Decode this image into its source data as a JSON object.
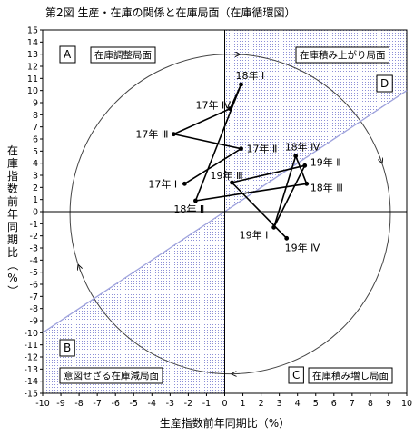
{
  "title": "第2図 生産・在庫の関係と在庫局面（在庫循環図）",
  "chart_data": {
    "type": "scatter",
    "connected": true,
    "xlabel": "生産指数前年同期比（%）",
    "ylabel": "在庫指数前年同期比（%）",
    "xlim": [
      -10,
      10
    ],
    "ylim": [
      -15,
      15
    ],
    "x_ticks": [
      -10,
      -9,
      -8,
      -7,
      -6,
      -5,
      -4,
      -3,
      -2,
      -1,
      0,
      1,
      2,
      3,
      4,
      5,
      6,
      7,
      8,
      9,
      10
    ],
    "y_ticks": [
      15,
      14,
      13,
      12,
      11,
      10,
      9,
      8,
      7,
      6,
      5,
      4,
      3,
      2,
      1,
      0,
      -1,
      -2,
      -3,
      -4,
      -5,
      -6,
      -7,
      -8,
      -9,
      -10,
      -11,
      -12,
      -13,
      -14,
      -15
    ],
    "diagonal_line": {
      "from": [
        -10,
        -10
      ],
      "to": [
        10,
        10
      ]
    },
    "grid": false,
    "points": [
      {
        "label": "17年 Ⅰ",
        "x": -2.2,
        "y": 2.3
      },
      {
        "label": "17年 Ⅱ",
        "x": 0.9,
        "y": 5.2
      },
      {
        "label": "17年 Ⅲ",
        "x": -2.8,
        "y": 6.4
      },
      {
        "label": "17年 Ⅳ",
        "x": 0.3,
        "y": 8.5
      },
      {
        "label": "18年 Ⅰ",
        "x": 0.9,
        "y": 10.5
      },
      {
        "label": "18年 Ⅱ",
        "x": -1.6,
        "y": 0.9
      },
      {
        "label": "18年 Ⅲ",
        "x": 4.5,
        "y": 2.3
      },
      {
        "label": "18年 Ⅳ",
        "x": 3.9,
        "y": 4.6
      },
      {
        "label": "19年 Ⅰ",
        "x": 2.7,
        "y": -1.3
      },
      {
        "label": "19年 Ⅱ",
        "x": 4.4,
        "y": 3.8
      },
      {
        "label": "19年 Ⅲ",
        "x": 0.4,
        "y": 2.4
      },
      {
        "label": "19年 Ⅳ",
        "x": 3.4,
        "y": -2.2
      }
    ],
    "quadrants": [
      {
        "letter": "A",
        "phase": "在庫調整局面"
      },
      {
        "letter": "B",
        "phase": "意図せざる在庫減局面"
      },
      {
        "letter": "C",
        "phase": "在庫積み増し局面"
      },
      {
        "letter": "D",
        "phase": "在庫積み上がり局面"
      }
    ],
    "colors": {
      "line": "#000000",
      "shading": "#9fa3dd",
      "axis": "#000000"
    }
  }
}
